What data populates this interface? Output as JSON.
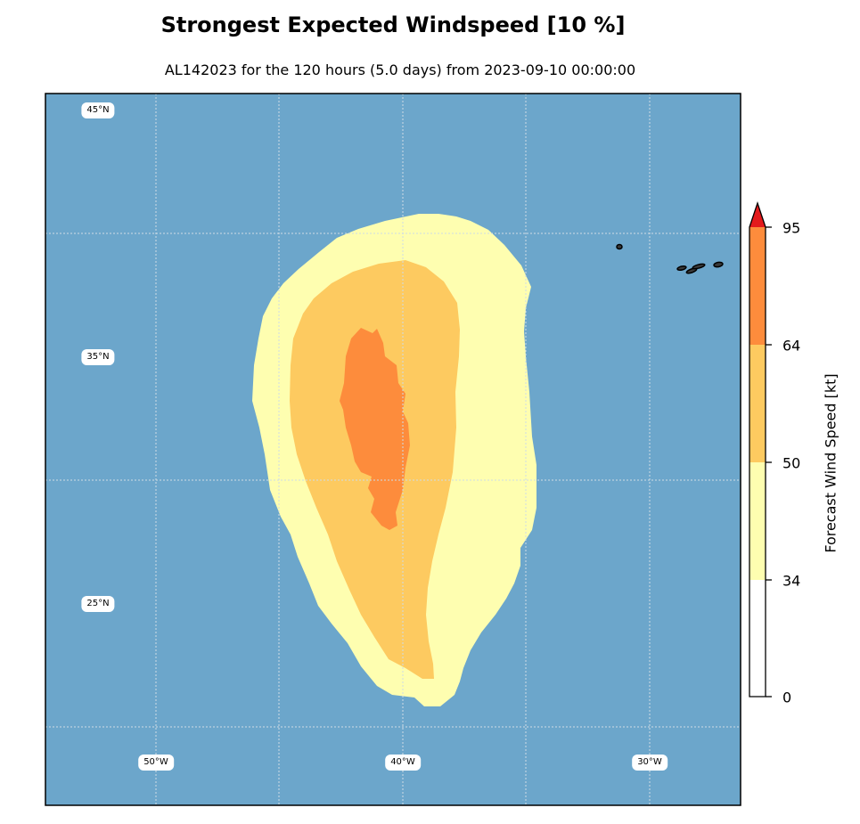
{
  "title": "Strongest Expected Windspeed [10 %]",
  "subtitle": "AL142023 for the 120 hours (5.0 days) from 2023-09-10 00:00:00",
  "colors": {
    "ocean": "#6ca6cb",
    "band_34_50": "#fefeb0",
    "band_50_64": "#fdca60",
    "band_64_95": "#fd8c3c",
    "band_above_95": "#e31a1c",
    "land": "#000000"
  },
  "map": {
    "lat_labels": [
      "45°N",
      "35°N",
      "25°N"
    ],
    "lon_labels": [
      "50°W",
      "40°W",
      "30°W"
    ],
    "islands": "azores-island-group"
  },
  "colorbar": {
    "label": "Forecast Wind Speed [kt]",
    "ticks": [
      "0",
      "34",
      "50",
      "64",
      "95"
    ],
    "extend": "max"
  }
}
